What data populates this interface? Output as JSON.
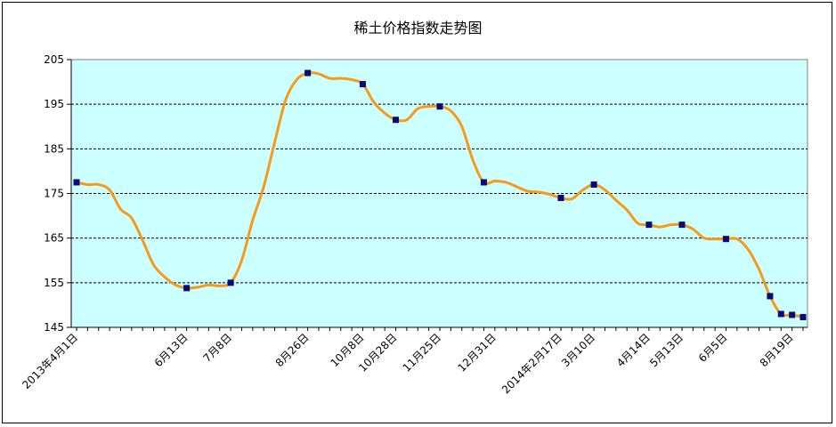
{
  "chart_data": {
    "type": "line",
    "title": "稀土价格指数走势图",
    "ylim": [
      145,
      205
    ],
    "yticks": [
      145,
      155,
      165,
      175,
      185,
      195,
      205
    ],
    "grid": "horizontal dashed",
    "colors": {
      "line": "#F59A1A",
      "marker": "#0A0A7A",
      "plot_bg": "#CCFFFF"
    },
    "x_tick_labels": [
      {
        "i": 0,
        "label": "2013年4月1日"
      },
      {
        "i": 10,
        "label": "6月13日"
      },
      {
        "i": 14,
        "label": "7月8日"
      },
      {
        "i": 21,
        "label": "8月26日"
      },
      {
        "i": 26,
        "label": "10月8日"
      },
      {
        "i": 29,
        "label": "10月28日"
      },
      {
        "i": 33,
        "label": "11月25日"
      },
      {
        "i": 38,
        "label": "12月31日"
      },
      {
        "i": 44,
        "label": "2014年2月17日"
      },
      {
        "i": 47,
        "label": "3月10日"
      },
      {
        "i": 52,
        "label": "4月14日"
      },
      {
        "i": 55,
        "label": "5月13日"
      },
      {
        "i": 59,
        "label": "6月5日"
      },
      {
        "i": 65,
        "label": "8月19日"
      }
    ],
    "series": [
      {
        "values": [
          177.5,
          177.0,
          177.0,
          175.8,
          171.5,
          169.5,
          164.5,
          159.0,
          156.3,
          154.5,
          153.8,
          154.0,
          154.5,
          154.3,
          155.0,
          160.0,
          169.0,
          176.5,
          186.5,
          196.0,
          200.5,
          202.0,
          201.8,
          200.8,
          200.8,
          200.5,
          199.5,
          195.5,
          193.0,
          191.5,
          191.5,
          194.0,
          194.5,
          194.5,
          193.5,
          190.0,
          182.5,
          177.5,
          177.8,
          177.5,
          176.5,
          175.5,
          175.3,
          174.8,
          174.0,
          173.8,
          175.8,
          177.0,
          175.8,
          173.5,
          171.3,
          168.3,
          168.0,
          167.5,
          168.0,
          168.0,
          167.0,
          165.0,
          164.8,
          164.8,
          164.8,
          162.5,
          158.0,
          152.0,
          148.0,
          147.8,
          147.3
        ],
        "markers_at": [
          0,
          10,
          14,
          21,
          26,
          29,
          33,
          37,
          44,
          47,
          52,
          55,
          59,
          63,
          64,
          65,
          66
        ]
      }
    ]
  }
}
